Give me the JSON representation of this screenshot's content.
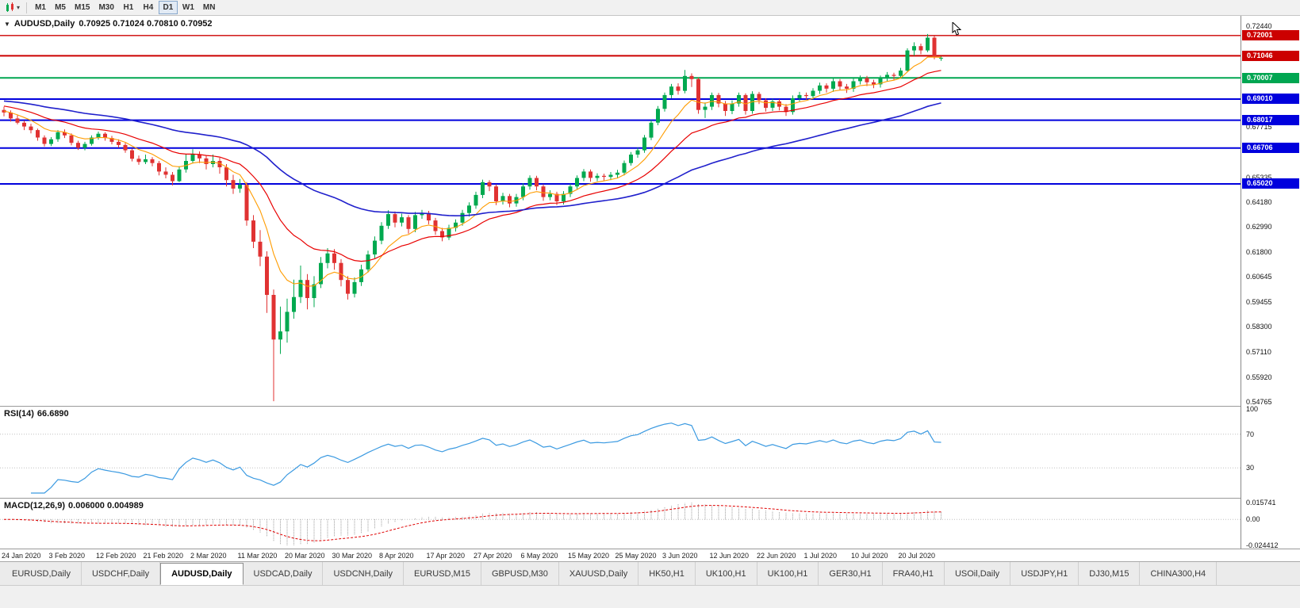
{
  "toolbar": {
    "timeframes": [
      "M1",
      "M5",
      "M15",
      "M30",
      "H1",
      "H4",
      "D1",
      "W1",
      "MN"
    ],
    "active_timeframe": "D1"
  },
  "chart": {
    "symbol": "AUDUSD,Daily",
    "ohlc": "0.70925  0.71024  0.70810  0.70952"
  },
  "indicators": {
    "rsi": {
      "name": "RSI(14)",
      "value": "66.6890",
      "levels": [
        "100",
        "70",
        "30"
      ]
    },
    "macd": {
      "name": "MACD(12,26,9)",
      "values": "0.006000 0.004989",
      "axis_labels": [
        "0.015741",
        "0.00",
        "-0.024412"
      ]
    }
  },
  "tabs": {
    "active_index": 2,
    "items": [
      "EURUSD,Daily",
      "USDCHF,Daily",
      "AUDUSD,Daily",
      "USDCAD,Daily",
      "USDCNH,Daily",
      "EURUSD,M15",
      "GBPUSD,M30",
      "XAUUSD,Daily",
      "HK50,H1",
      "UK100,H1",
      "UK100,H1",
      "GER30,H1",
      "FRA40,H1",
      "USOil,Daily",
      "USDJPY,H1",
      "DJ30,M15",
      "CHINA300,H4"
    ]
  },
  "colors": {
    "candle_up": "#00a94f",
    "candle_down": "#e03232",
    "rsi_line": "#3b9ae1",
    "macd_signal": "#e00000",
    "macd_histogram": "#9b9b9b",
    "level_line": "#c0c0c0"
  },
  "chart_data": {
    "type": "candlestick",
    "title": "AUDUSD,Daily",
    "last_ohlc": {
      "open": 0.70925,
      "high": 0.71024,
      "low": 0.7081,
      "close": 0.70952
    },
    "candles_per_label": 7,
    "x_labels": [
      "24 Jan 2020",
      "3 Feb 2020",
      "12 Feb 2020",
      "21 Feb 2020",
      "2 Mar 2020",
      "11 Mar 2020",
      "20 Mar 2020",
      "30 Mar 2020",
      "8 Apr 2020",
      "17 Apr 2020",
      "27 Apr 2020",
      "6 May 2020",
      "15 May 2020",
      "25 May 2020",
      "3 Jun 2020",
      "12 Jun 2020",
      "22 Jun 2020",
      "1 Jul 2020",
      "10 Jul 2020",
      "20 Jul 2020"
    ],
    "y_axis": {
      "min": 0.54765,
      "max": 0.7244,
      "plain_labels": [
        "0.72440",
        "0.67715",
        "0.65335",
        "0.64180",
        "0.62990",
        "0.61800",
        "0.60645",
        "0.59455",
        "0.58300",
        "0.57110",
        "0.55920",
        "0.54765"
      ]
    },
    "horizontal_lines": [
      {
        "label": "0.72001",
        "price": 0.72001,
        "color": "#cc0000",
        "width": 1.3
      },
      {
        "label": "0.71046",
        "price": 0.71046,
        "color": "#cc0000",
        "width": 2
      },
      {
        "label": "0.70007",
        "price": 0.70007,
        "color": "#00a651",
        "width": 2
      },
      {
        "label": "0.69010",
        "price": 0.6901,
        "color": "#0000dd",
        "width": 2
      },
      {
        "label": "0.68017",
        "price": 0.68017,
        "color": "#0000dd",
        "width": 2
      },
      {
        "label": "0.66706",
        "price": 0.66706,
        "color": "#0000dd",
        "width": 2
      },
      {
        "label": "0.65020",
        "price": 0.6502,
        "color": "#0000dd",
        "width": 2
      }
    ],
    "moving_averages": [
      {
        "period": 8,
        "color": "#ff9c00",
        "width": 1.1,
        "seed": 0.6845
      },
      {
        "period": 20,
        "color": "#e80000",
        "width": 1.2,
        "seed": 0.6868
      },
      {
        "period": 55,
        "color": "#2020cc",
        "width": 1.6,
        "seed": 0.6892
      }
    ],
    "rsi": {
      "period": 14,
      "last_value": 66.689
    },
    "macd": {
      "fast": 12,
      "slow": 26,
      "signal": 9,
      "last_main": 0.006,
      "last_signal": 0.004989
    },
    "candles": [
      [
        0.685,
        0.6865,
        0.682,
        0.6838
      ],
      [
        0.6838,
        0.6848,
        0.6795,
        0.681
      ],
      [
        0.681,
        0.6825,
        0.6782,
        0.679
      ],
      [
        0.679,
        0.68,
        0.6755,
        0.6772
      ],
      [
        0.6772,
        0.6785,
        0.674,
        0.6755
      ],
      [
        0.6755,
        0.6762,
        0.6705,
        0.672
      ],
      [
        0.672,
        0.673,
        0.6678,
        0.669
      ],
      [
        0.669,
        0.6722,
        0.668,
        0.6712
      ],
      [
        0.6712,
        0.6755,
        0.67,
        0.6745
      ],
      [
        0.6745,
        0.6758,
        0.6718,
        0.673
      ],
      [
        0.673,
        0.674,
        0.6683,
        0.6695
      ],
      [
        0.6695,
        0.6705,
        0.6662,
        0.6672
      ],
      [
        0.6672,
        0.67,
        0.666,
        0.669
      ],
      [
        0.669,
        0.673,
        0.6682,
        0.672
      ],
      [
        0.672,
        0.6748,
        0.671,
        0.6738
      ],
      [
        0.6738,
        0.6745,
        0.6705,
        0.6718
      ],
      [
        0.6718,
        0.6728,
        0.6688,
        0.67
      ],
      [
        0.67,
        0.6712,
        0.6672,
        0.6685
      ],
      [
        0.6685,
        0.6695,
        0.6648,
        0.666
      ],
      [
        0.666,
        0.6668,
        0.6608,
        0.662
      ],
      [
        0.662,
        0.6635,
        0.6592,
        0.6605
      ],
      [
        0.6605,
        0.664,
        0.6595,
        0.6618
      ],
      [
        0.6618,
        0.6628,
        0.6585,
        0.66
      ],
      [
        0.66,
        0.661,
        0.6542,
        0.656
      ],
      [
        0.656,
        0.658,
        0.6528,
        0.6545
      ],
      [
        0.6545,
        0.6558,
        0.6495,
        0.6515
      ],
      [
        0.6515,
        0.6585,
        0.651,
        0.657
      ],
      [
        0.657,
        0.664,
        0.6555,
        0.661
      ],
      [
        0.661,
        0.6665,
        0.66,
        0.664
      ],
      [
        0.664,
        0.6655,
        0.66,
        0.6622
      ],
      [
        0.6622,
        0.6635,
        0.657,
        0.6595
      ],
      [
        0.6595,
        0.664,
        0.658,
        0.661
      ],
      [
        0.661,
        0.6625,
        0.655,
        0.658
      ],
      [
        0.658,
        0.6595,
        0.649,
        0.652
      ],
      [
        0.652,
        0.6545,
        0.6455,
        0.648
      ],
      [
        0.648,
        0.6525,
        0.646,
        0.6498
      ],
      [
        0.6498,
        0.651,
        0.6305,
        0.633
      ],
      [
        0.633,
        0.6355,
        0.62,
        0.623
      ],
      [
        0.623,
        0.6285,
        0.6115,
        0.616
      ],
      [
        0.616,
        0.6185,
        0.5895,
        0.598
      ],
      [
        0.598,
        0.6005,
        0.548,
        0.577
      ],
      [
        0.577,
        0.5925,
        0.5702,
        0.5808
      ],
      [
        0.5808,
        0.5962,
        0.5755,
        0.59
      ],
      [
        0.59,
        0.6052,
        0.5868,
        0.597
      ],
      [
        0.597,
        0.6118,
        0.5942,
        0.605
      ],
      [
        0.605,
        0.6078,
        0.5912,
        0.5965
      ],
      [
        0.5965,
        0.6068,
        0.5922,
        0.603
      ],
      [
        0.603,
        0.6158,
        0.6012,
        0.613
      ],
      [
        0.613,
        0.62,
        0.6105,
        0.6175
      ],
      [
        0.6175,
        0.6195,
        0.6098,
        0.613
      ],
      [
        0.613,
        0.6148,
        0.602,
        0.605
      ],
      [
        0.605,
        0.6068,
        0.5958,
        0.5985
      ],
      [
        0.5985,
        0.6062,
        0.5968,
        0.604
      ],
      [
        0.604,
        0.6122,
        0.6022,
        0.61
      ],
      [
        0.61,
        0.6188,
        0.6085,
        0.617
      ],
      [
        0.617,
        0.6255,
        0.6152,
        0.6235
      ],
      [
        0.6235,
        0.6322,
        0.6218,
        0.6305
      ],
      [
        0.6305,
        0.6378,
        0.629,
        0.636
      ],
      [
        0.636,
        0.6372,
        0.6298,
        0.632
      ],
      [
        0.632,
        0.6362,
        0.6302,
        0.6345
      ],
      [
        0.6345,
        0.6355,
        0.6268,
        0.629
      ],
      [
        0.629,
        0.637,
        0.6275,
        0.6355
      ],
      [
        0.6355,
        0.638,
        0.6338,
        0.6365
      ],
      [
        0.6365,
        0.6375,
        0.6312,
        0.633
      ],
      [
        0.633,
        0.6342,
        0.6262,
        0.628
      ],
      [
        0.628,
        0.6295,
        0.6232,
        0.625
      ],
      [
        0.625,
        0.631,
        0.6238,
        0.6295
      ],
      [
        0.6295,
        0.6335,
        0.6278,
        0.632
      ],
      [
        0.632,
        0.638,
        0.6305,
        0.6365
      ],
      [
        0.6365,
        0.6415,
        0.6348,
        0.64
      ],
      [
        0.64,
        0.6465,
        0.6385,
        0.645
      ],
      [
        0.645,
        0.6522,
        0.6435,
        0.651
      ],
      [
        0.651,
        0.652,
        0.6468,
        0.649
      ],
      [
        0.649,
        0.65,
        0.6402,
        0.642
      ],
      [
        0.642,
        0.646,
        0.6405,
        0.6445
      ],
      [
        0.6445,
        0.6455,
        0.6392,
        0.641
      ],
      [
        0.641,
        0.6455,
        0.6395,
        0.644
      ],
      [
        0.644,
        0.6505,
        0.6425,
        0.649
      ],
      [
        0.649,
        0.6542,
        0.6475,
        0.653
      ],
      [
        0.653,
        0.654,
        0.6472,
        0.649
      ],
      [
        0.649,
        0.65,
        0.6422,
        0.644
      ],
      [
        0.644,
        0.6472,
        0.6425,
        0.6455
      ],
      [
        0.6455,
        0.6465,
        0.6402,
        0.642
      ],
      [
        0.642,
        0.6468,
        0.6405,
        0.6455
      ],
      [
        0.6455,
        0.6502,
        0.644,
        0.649
      ],
      [
        0.649,
        0.6542,
        0.6478,
        0.653
      ],
      [
        0.653,
        0.6572,
        0.6515,
        0.656
      ],
      [
        0.656,
        0.657,
        0.6512,
        0.653
      ],
      [
        0.653,
        0.6552,
        0.6515,
        0.654
      ],
      [
        0.654,
        0.655,
        0.6518,
        0.6535
      ],
      [
        0.6535,
        0.6558,
        0.652,
        0.6545
      ],
      [
        0.6545,
        0.6568,
        0.653,
        0.6555
      ],
      [
        0.6555,
        0.6612,
        0.6542,
        0.66
      ],
      [
        0.66,
        0.6652,
        0.6588,
        0.664
      ],
      [
        0.664,
        0.6672,
        0.6625,
        0.666
      ],
      [
        0.666,
        0.6732,
        0.6648,
        0.672
      ],
      [
        0.672,
        0.6802,
        0.6708,
        0.679
      ],
      [
        0.679,
        0.6868,
        0.6778,
        0.6855
      ],
      [
        0.6855,
        0.6932,
        0.6842,
        0.692
      ],
      [
        0.692,
        0.6972,
        0.6905,
        0.696
      ],
      [
        0.696,
        0.6975,
        0.6922,
        0.694
      ],
      [
        0.694,
        0.7038,
        0.6928,
        0.701
      ],
      [
        0.701,
        0.7022,
        0.6958,
        0.6995
      ],
      [
        0.6995,
        0.7002,
        0.6832,
        0.685
      ],
      [
        0.685,
        0.6885,
        0.6812,
        0.6865
      ],
      [
        0.6865,
        0.6932,
        0.685,
        0.692
      ],
      [
        0.692,
        0.693,
        0.6862,
        0.688
      ],
      [
        0.688,
        0.6892,
        0.6822,
        0.6845
      ],
      [
        0.6845,
        0.6895,
        0.683,
        0.688
      ],
      [
        0.688,
        0.6932,
        0.6865,
        0.692
      ],
      [
        0.692,
        0.6928,
        0.6828,
        0.6845
      ],
      [
        0.6845,
        0.6938,
        0.6832,
        0.6925
      ],
      [
        0.6925,
        0.6935,
        0.6878,
        0.6895
      ],
      [
        0.6895,
        0.6905,
        0.6842,
        0.686
      ],
      [
        0.686,
        0.6902,
        0.6845,
        0.689
      ],
      [
        0.689,
        0.69,
        0.6848,
        0.6865
      ],
      [
        0.6865,
        0.6878,
        0.6822,
        0.684
      ],
      [
        0.684,
        0.6918,
        0.6828,
        0.6905
      ],
      [
        0.6905,
        0.6935,
        0.689,
        0.692
      ],
      [
        0.692,
        0.6932,
        0.6898,
        0.6915
      ],
      [
        0.6915,
        0.6952,
        0.69,
        0.694
      ],
      [
        0.694,
        0.6978,
        0.6925,
        0.6965
      ],
      [
        0.6965,
        0.6975,
        0.6932,
        0.695
      ],
      [
        0.695,
        0.6998,
        0.6935,
        0.6985
      ],
      [
        0.6985,
        0.6995,
        0.6942,
        0.696
      ],
      [
        0.696,
        0.6972,
        0.693,
        0.695
      ],
      [
        0.695,
        0.6998,
        0.6935,
        0.6985
      ],
      [
        0.6985,
        0.7012,
        0.697,
        0.7
      ],
      [
        0.7,
        0.701,
        0.6962,
        0.698
      ],
      [
        0.698,
        0.6992,
        0.6952,
        0.697
      ],
      [
        0.697,
        0.7012,
        0.6955,
        0.7
      ],
      [
        0.7,
        0.7028,
        0.6985,
        0.7015
      ],
      [
        0.7015,
        0.7025,
        0.6992,
        0.701
      ],
      [
        0.701,
        0.7048,
        0.6998,
        0.7035
      ],
      [
        0.7035,
        0.714,
        0.7028,
        0.713
      ],
      [
        0.713,
        0.7168,
        0.7105,
        0.715
      ],
      [
        0.715,
        0.7162,
        0.7112,
        0.713
      ],
      [
        0.713,
        0.7207,
        0.7122,
        0.719
      ],
      [
        0.719,
        0.7198,
        0.7088,
        0.7098
      ],
      [
        0.70925,
        0.71024,
        0.7081,
        0.70952
      ]
    ]
  }
}
